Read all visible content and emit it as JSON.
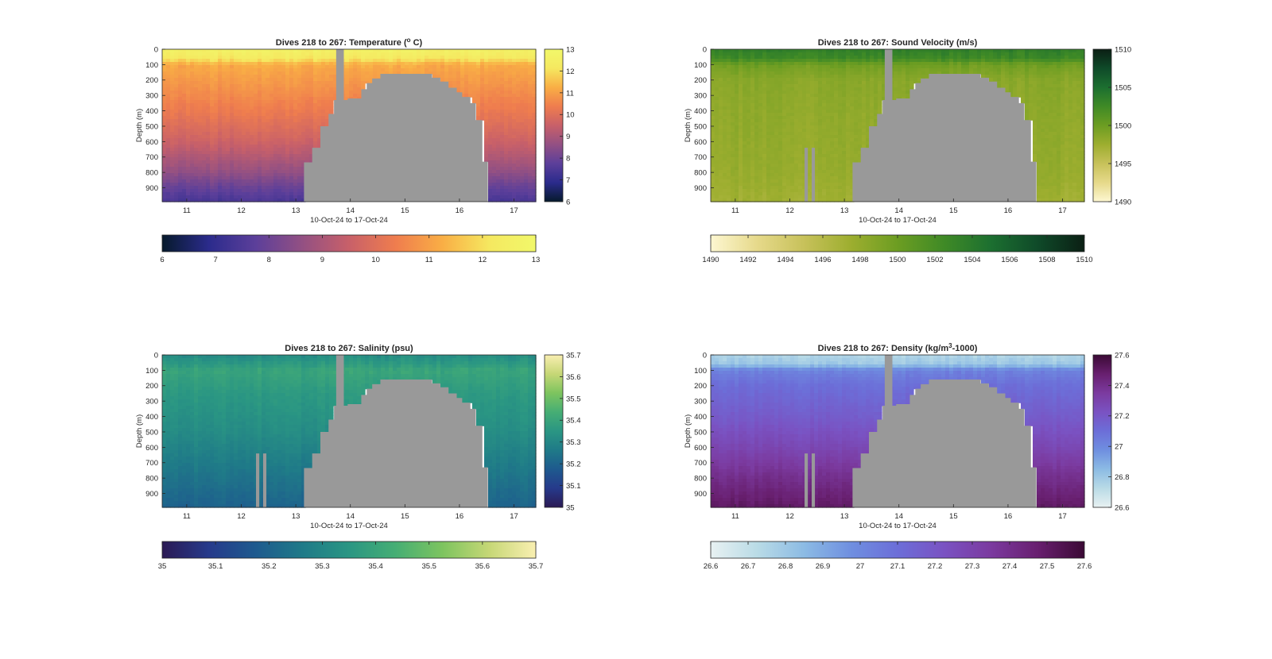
{
  "figure": {
    "background": "#ffffff",
    "terrain_color": "#999999",
    "x_label": "10-Oct-24 to 17-Oct-24",
    "y_label": "Depth (m)",
    "x_ticks": [
      "11",
      "12",
      "13",
      "14",
      "15",
      "16",
      "17"
    ],
    "y_ticks": [
      "0",
      "100",
      "200",
      "300",
      "400",
      "500",
      "600",
      "700",
      "800",
      "900"
    ]
  },
  "chart_data": [
    {
      "type": "heatmap",
      "title": "Dives 218 to 267: Temperature (° C)",
      "title_parts": [
        "Dives 218 to 267: Temperature (",
        "o",
        " C)"
      ],
      "title_sup_index": 1,
      "xlabel": "10-Oct-24 to 17-Oct-24",
      "ylabel": "Depth (m)",
      "x_range_days": [
        10.55,
        17.4
      ],
      "y_range": [
        0,
        990
      ],
      "y_reversed": true,
      "value_range": [
        6,
        13
      ],
      "colormap": [
        "#061a2c",
        "#2b2b8c",
        "#5c3f9a",
        "#935083",
        "#c86069",
        "#ef7d4e",
        "#f9ae45",
        "#f5e860",
        "#f1f86a"
      ],
      "colorbar_ticks": [
        "6",
        "7",
        "8",
        "9",
        "10",
        "11",
        "12",
        "13"
      ],
      "bottom_colorbar_ticks": [
        "6",
        "7",
        "8",
        "9",
        "10",
        "11",
        "12",
        "13"
      ],
      "profile_stops": [
        [
          0,
          12.6
        ],
        [
          60,
          12.2
        ],
        [
          100,
          11.2
        ],
        [
          200,
          10.9
        ],
        [
          400,
          10.3
        ],
        [
          600,
          9.6
        ],
        [
          800,
          8.6
        ],
        [
          900,
          7.9
        ],
        [
          990,
          7.4
        ]
      ]
    },
    {
      "type": "heatmap",
      "title": "Dives 218 to 267: Sound Velocity (m/s)",
      "title_parts": [
        "Dives 218 to 267: Sound Velocity (m/s)"
      ],
      "title_sup_index": -1,
      "xlabel": "10-Oct-24 to 17-Oct-24",
      "ylabel": "Depth (m)",
      "x_range_days": [
        10.55,
        17.4
      ],
      "y_range": [
        0,
        990
      ],
      "y_reversed": true,
      "value_range": [
        1490,
        1510
      ],
      "colormap": [
        "#fdf7d1",
        "#e6d98a",
        "#c7c15a",
        "#9dae2f",
        "#6c9d22",
        "#3f8a26",
        "#1c6f30",
        "#0f4a29",
        "#0b1f14"
      ],
      "colorbar_ticks": [
        "1490",
        "1495",
        "1500",
        "1505",
        "1510"
      ],
      "bottom_colorbar_ticks": [
        "1490",
        "1492",
        "1494",
        "1496",
        "1498",
        "1500",
        "1502",
        "1504",
        "1506",
        "1508",
        "1510"
      ],
      "profile_stops": [
        [
          0,
          1503.5
        ],
        [
          60,
          1502.6
        ],
        [
          100,
          1499.8
        ],
        [
          200,
          1498.5
        ],
        [
          400,
          1498.2
        ],
        [
          600,
          1498.0
        ],
        [
          800,
          1497.8
        ],
        [
          990,
          1497.2
        ]
      ]
    },
    {
      "type": "heatmap",
      "title": "Dives 218 to 267: Salinity (psu)",
      "title_parts": [
        "Dives 218 to 267: Salinity (psu)"
      ],
      "title_sup_index": -1,
      "xlabel": "10-Oct-24 to 17-Oct-24",
      "ylabel": "Depth (m)",
      "x_range_days": [
        10.55,
        17.4
      ],
      "y_range": [
        0,
        990
      ],
      "y_reversed": true,
      "value_range": [
        35,
        35.7
      ],
      "colormap": [
        "#2b1a54",
        "#263a8b",
        "#1e5a8e",
        "#1f7a88",
        "#2a9683",
        "#46ae74",
        "#7dc45f",
        "#c6d776",
        "#f9efb1"
      ],
      "colorbar_ticks": [
        "35",
        "35.1",
        "35.2",
        "35.3",
        "35.4",
        "35.5",
        "35.6",
        "35.7"
      ],
      "bottom_colorbar_ticks": [
        "35",
        "35.1",
        "35.2",
        "35.3",
        "35.4",
        "35.5",
        "35.6",
        "35.7"
      ],
      "profile_stops": [
        [
          0,
          35.32
        ],
        [
          60,
          35.36
        ],
        [
          100,
          35.4
        ],
        [
          250,
          35.36
        ],
        [
          500,
          35.32
        ],
        [
          700,
          35.27
        ],
        [
          900,
          35.22
        ],
        [
          990,
          35.2
        ]
      ]
    },
    {
      "type": "heatmap",
      "title": "Dives 218 to 267: Density (kg/m³-1000)",
      "title_parts": [
        "Dives 218 to 267: Density (kg/m",
        "3",
        "-1000)"
      ],
      "title_sup_index": 1,
      "xlabel": "10-Oct-24 to 17-Oct-24",
      "ylabel": "Depth (m)",
      "x_range_days": [
        10.55,
        17.4
      ],
      "y_range": [
        0,
        990
      ],
      "y_reversed": true,
      "value_range": [
        26.6,
        27.6
      ],
      "colormap": [
        "#e8f1f2",
        "#b9dbe6",
        "#8cbbe4",
        "#6f8fe0",
        "#6c6ed8",
        "#7a52c2",
        "#7b3a9f",
        "#681f6f",
        "#3b0a35"
      ],
      "colorbar_ticks": [
        "26.6",
        "26.8",
        "27",
        "27.2",
        "27.4",
        "27.6"
      ],
      "bottom_colorbar_ticks": [
        "26.6",
        "26.7",
        "26.8",
        "26.9",
        "27",
        "27.1",
        "27.2",
        "27.3",
        "27.4",
        "27.5",
        "27.6"
      ],
      "profile_stops": [
        [
          0,
          26.75
        ],
        [
          60,
          26.8
        ],
        [
          100,
          27.02
        ],
        [
          200,
          27.1
        ],
        [
          400,
          27.18
        ],
        [
          600,
          27.28
        ],
        [
          800,
          27.4
        ],
        [
          990,
          27.5
        ]
      ]
    }
  ]
}
